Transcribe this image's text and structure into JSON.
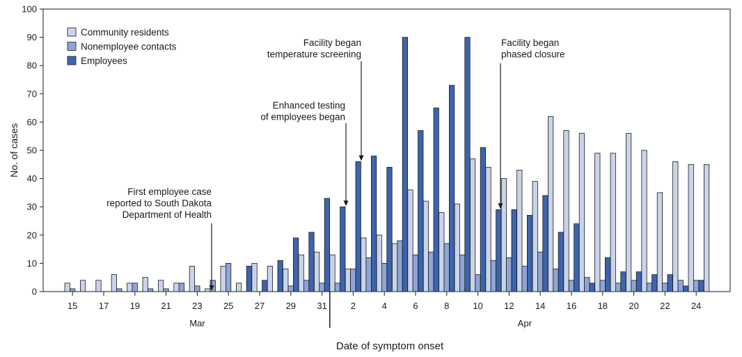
{
  "chart_data": {
    "type": "bar",
    "title": "",
    "ylabel": "No. of cases",
    "xlabel": "Date of symptom onset",
    "ylim": [
      0,
      100
    ],
    "yticks": [
      0,
      10,
      20,
      30,
      40,
      50,
      60,
      70,
      80,
      90,
      100
    ],
    "legend_position": "top-left",
    "categories": [
      "Mar 15",
      "Mar 16",
      "Mar 17",
      "Mar 18",
      "Mar 19",
      "Mar 20",
      "Mar 21",
      "Mar 22",
      "Mar 23",
      "Mar 24",
      "Mar 25",
      "Mar 26",
      "Mar 27",
      "Mar 28",
      "Mar 29",
      "Mar 30",
      "Mar 31",
      "Apr 1",
      "Apr 2",
      "Apr 3",
      "Apr 4",
      "Apr 5",
      "Apr 6",
      "Apr 7",
      "Apr 8",
      "Apr 9",
      "Apr 10",
      "Apr 11",
      "Apr 12",
      "Apr 13",
      "Apr 14",
      "Apr 15",
      "Apr 16",
      "Apr 17",
      "Apr 18",
      "Apr 19",
      "Apr 20",
      "Apr 21",
      "Apr 22",
      "Apr 23",
      "Apr 24",
      "Apr 25"
    ],
    "tick_labels": [
      "15",
      "17",
      "19",
      "21",
      "23",
      "25",
      "27",
      "29",
      "31",
      "2",
      "4",
      "6",
      "8",
      "10",
      "12",
      "14",
      "16",
      "18",
      "20",
      "22",
      "24"
    ],
    "tick_indices": [
      0,
      2,
      4,
      6,
      8,
      10,
      12,
      14,
      16,
      18,
      20,
      22,
      24,
      26,
      28,
      30,
      32,
      34,
      36,
      38,
      40
    ],
    "months": [
      {
        "label": "Mar",
        "start": 0,
        "end": 16
      },
      {
        "label": "Apr",
        "start": 17,
        "end": 41
      }
    ],
    "series": [
      {
        "name": "Community residents",
        "color": "#c9d3e9",
        "values": [
          3,
          4,
          4,
          6,
          3,
          5,
          4,
          3,
          9,
          1,
          9,
          3,
          10,
          9,
          8,
          13,
          14,
          13,
          8,
          19,
          20,
          17,
          36,
          32,
          28,
          31,
          47,
          44,
          40,
          43,
          39,
          62,
          57,
          56,
          49,
          49,
          56,
          50,
          35,
          46,
          45,
          45
        ]
      },
      {
        "name": "Nonemployee contacts",
        "color": "#8fa5d6",
        "values": [
          1,
          0,
          0,
          1,
          3,
          1,
          1,
          3,
          2,
          4,
          10,
          0,
          0,
          0,
          2,
          4,
          3,
          3,
          8,
          12,
          10,
          18,
          13,
          14,
          17,
          13,
          6,
          11,
          12,
          9,
          14,
          8,
          4,
          5,
          4,
          3,
          4,
          3,
          3,
          4,
          4,
          0
        ]
      },
      {
        "name": "Employees",
        "color": "#3d64ad",
        "values": [
          0,
          0,
          0,
          0,
          0,
          0,
          0,
          0,
          0,
          0,
          0,
          9,
          4,
          11,
          19,
          21,
          33,
          30,
          46,
          48,
          44,
          90,
          57,
          65,
          73,
          90,
          51,
          29,
          29,
          27,
          34,
          21,
          24,
          3,
          12,
          7,
          7,
          6,
          6,
          2,
          4,
          0
        ]
      }
    ],
    "annotations": [
      {
        "lines": [
          "First employee case",
          "reported to South Dakota",
          "Department of Health"
        ],
        "target_index": 9,
        "series": "Employees"
      },
      {
        "lines": [
          "Enhanced testing",
          "of employees began"
        ],
        "target_index": 17,
        "series": "Employees"
      },
      {
        "lines": [
          "Facility began",
          "temperature screening"
        ],
        "target_index": 18,
        "series": "Employees"
      },
      {
        "lines": [
          "Facility began",
          "phased closure"
        ],
        "target_index": 27,
        "series": "Employees"
      }
    ]
  }
}
